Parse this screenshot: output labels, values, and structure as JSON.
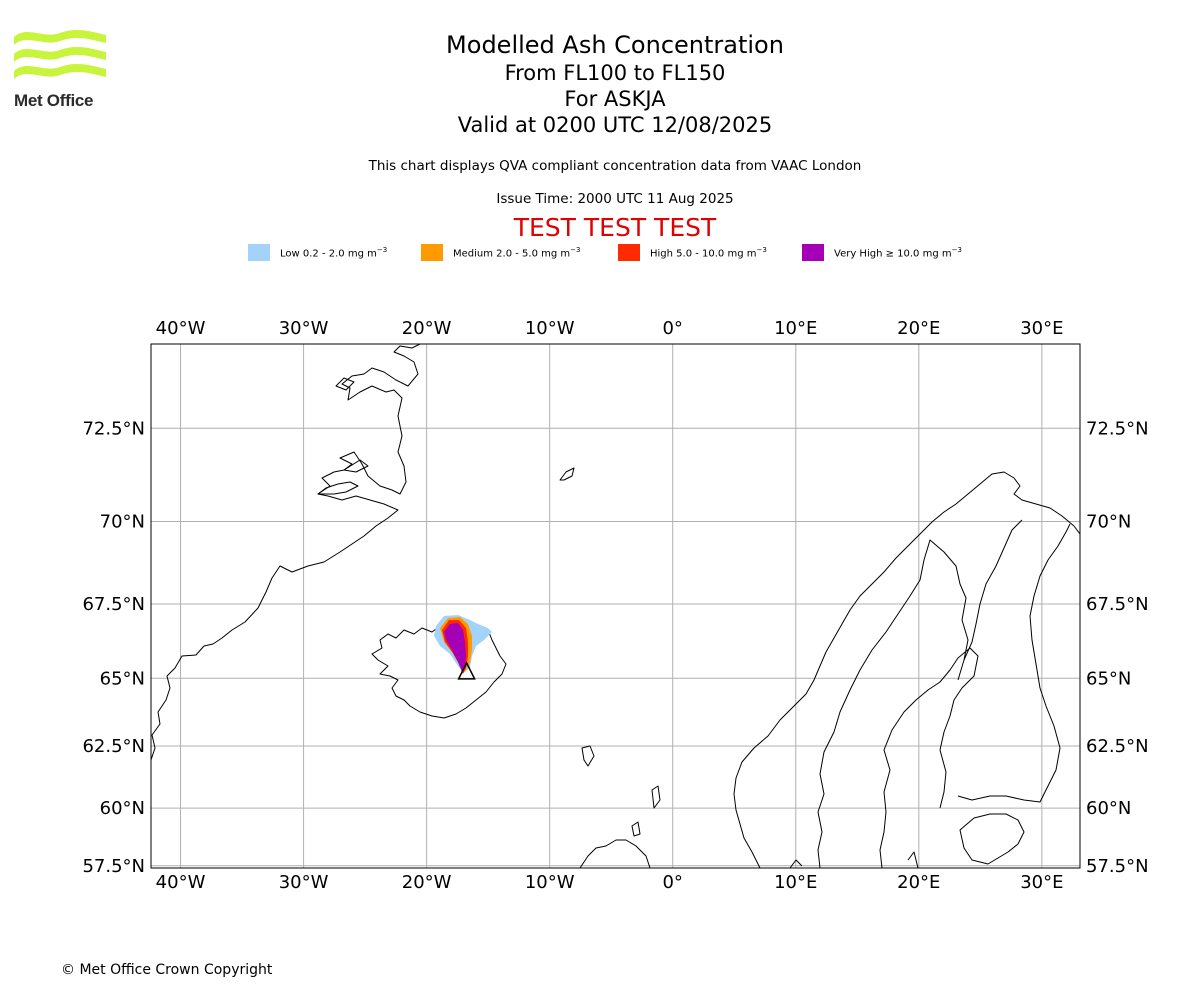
{
  "brand": {
    "name": "Met Office",
    "logo_color": "#c8f43c"
  },
  "header": {
    "title": "Modelled Ash Concentration",
    "levels": "From FL100 to FL150",
    "volcano": "For ASKJA",
    "valid": "Valid at 0200 UTC 12/08/2025",
    "description": "This chart displays QVA compliant concentration data from VAAC London",
    "issue_time": "Issue Time: 2000 UTC 11 Aug 2025",
    "test_banner": "TEST TEST TEST",
    "test_color": "#e00000"
  },
  "legend": [
    {
      "label_prefix": "Low 0.2 - 2.0 mg m",
      "exp": "−3",
      "color": "#a3d3fa"
    },
    {
      "label_prefix": "Medium 2.0 - 5.0 mg m",
      "exp": "−3",
      "color": "#ff9b00"
    },
    {
      "label_prefix": "High 5.0 - 10.0 mg m",
      "exp": "−3",
      "color": "#ff2a00"
    },
    {
      "label_prefix": "Very High  ≥  10.0 mg m",
      "exp": "−3",
      "color": "#a500b5"
    }
  ],
  "map": {
    "lon_labels": [
      "40°W",
      "30°W",
      "20°W",
      "10°W",
      "0°",
      "10°E",
      "20°E",
      "30°E"
    ],
    "lon_values": [
      -40,
      -30,
      -20,
      -10,
      0,
      10,
      20,
      30
    ],
    "lat_labels": [
      "72.5°N",
      "70°N",
      "67.5°N",
      "65°N",
      "62.5°N",
      "60°N",
      "57.5°N"
    ],
    "lat_values": [
      72.5,
      70,
      67.5,
      65,
      62.5,
      60,
      57.5
    ],
    "extent": {
      "lon_min": -42.4,
      "lon_max": 33.1,
      "lat_min": 57.4,
      "lat_max": 74.5
    },
    "volcano_marker": {
      "name": "ASKJA",
      "lon": -16.75,
      "lat": 65.05
    },
    "gridline_color": "#b0b0b0"
  },
  "footer": {
    "copyright": "© Met Office Crown Copyright"
  }
}
